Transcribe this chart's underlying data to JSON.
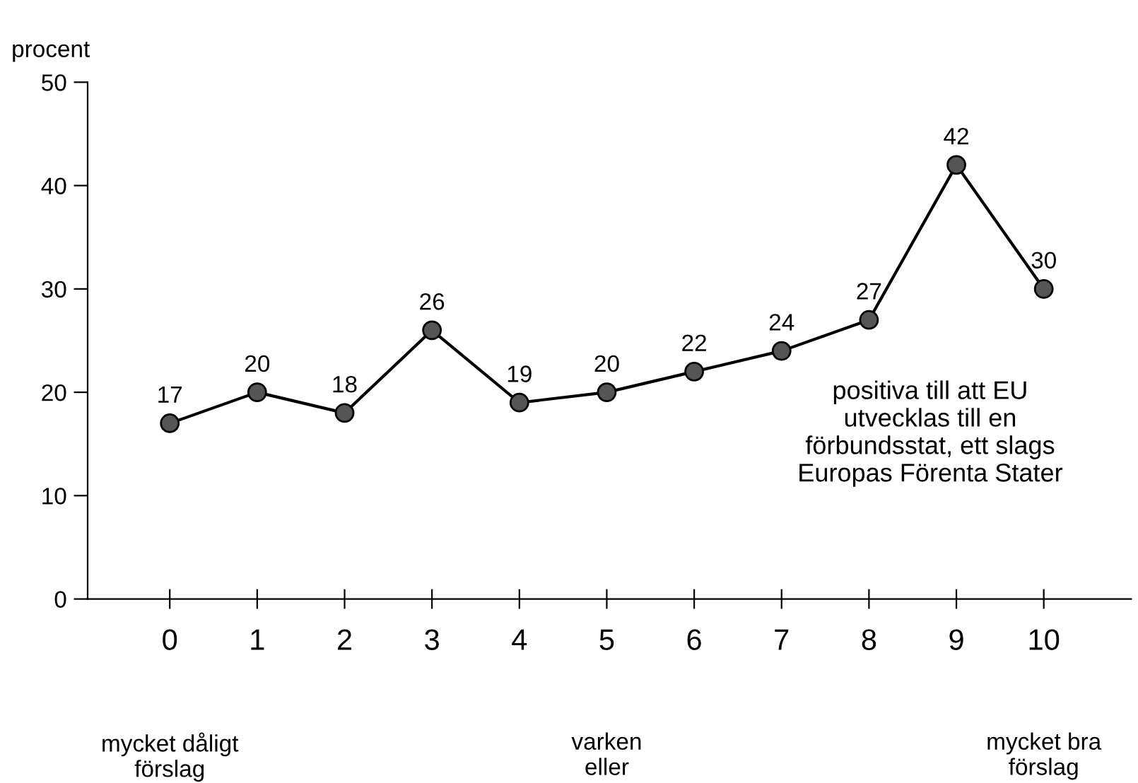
{
  "chart_data": {
    "type": "line",
    "ylabel": "procent",
    "categories": [
      "0",
      "1",
      "2",
      "3",
      "4",
      "5",
      "6",
      "7",
      "8",
      "9",
      "10"
    ],
    "series": [
      {
        "color": "#555555",
        "values": [
          17,
          20,
          18,
          26,
          19,
          20,
          22,
          24,
          27,
          42,
          30
        ]
      }
    ],
    "ylim": [
      0,
      50
    ],
    "yticks": [
      0,
      10,
      20,
      30,
      40,
      50
    ],
    "marker": "circle",
    "line_style": "solid",
    "data_labels": true,
    "grid": false,
    "legend": false,
    "annotations": [
      "mycket dåligt\nförslag",
      "varken\neller",
      "mycket bra\nförslag",
      "positiva till att EU\nutvecklas till en\nförbundsstat, ett slags\nEuropas Förenta Stater"
    ]
  }
}
